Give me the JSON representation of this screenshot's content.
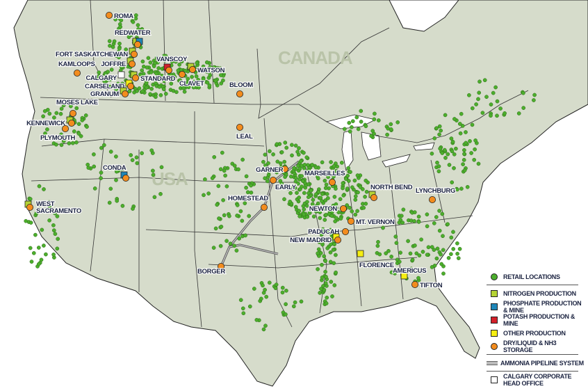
{
  "map": {
    "countries": [
      "CANADA",
      "USA"
    ],
    "colors": {
      "land": "#d6dccb",
      "water": "#ffffff",
      "retail": "#4cae2c",
      "nitrogen": "#b5d334",
      "phosphate": "#1e86b8",
      "potash": "#d3202a",
      "other": "#f5ee12",
      "storage": "#f28c1e",
      "head_office": "#ffffff",
      "pipeline": "#9a9a9a"
    },
    "facilities": [
      {
        "name": "ROMA",
        "types": [
          "storage"
        ]
      },
      {
        "name": "REDWATER",
        "types": [
          "nitrogen",
          "phosphate",
          "storage"
        ]
      },
      {
        "name": "FORT SASKATCHEWAN",
        "types": [
          "nitrogen",
          "storage"
        ]
      },
      {
        "name": "JOFFRE",
        "types": [
          "nitrogen",
          "storage"
        ]
      },
      {
        "name": "KAMLOOPS",
        "types": [
          "storage"
        ]
      },
      {
        "name": "CALGARY",
        "types": [
          "head_office"
        ]
      },
      {
        "name": "STANDARD",
        "types": [
          "nitrogen",
          "storage"
        ]
      },
      {
        "name": "CARSELAND",
        "types": [
          "other",
          "storage"
        ]
      },
      {
        "name": "GRANUM",
        "types": [
          "nitrogen",
          "storage"
        ]
      },
      {
        "name": "VANSCOY",
        "types": [
          "potash",
          "storage"
        ]
      },
      {
        "name": "CLAVET",
        "types": [
          "storage"
        ]
      },
      {
        "name": "WATSON",
        "types": [
          "nitrogen",
          "storage"
        ]
      },
      {
        "name": "BLOOM",
        "types": [
          "storage"
        ]
      },
      {
        "name": "MOSES LAKE",
        "types": [
          "storage"
        ]
      },
      {
        "name": "KENNEWICK",
        "types": [
          "nitrogen",
          "storage"
        ]
      },
      {
        "name": "PLYMOUTH",
        "types": [
          "storage"
        ]
      },
      {
        "name": "CONDA",
        "types": [
          "phosphate",
          "storage"
        ]
      },
      {
        "name": "WEST SACRAMENTO",
        "types": [
          "nitrogen",
          "storage"
        ]
      },
      {
        "name": "LEAL",
        "types": [
          "storage"
        ]
      },
      {
        "name": "GARNER",
        "types": [
          "storage"
        ]
      },
      {
        "name": "EARLY",
        "types": [
          "storage"
        ]
      },
      {
        "name": "HOMESTEAD",
        "types": [
          "storage"
        ]
      },
      {
        "name": "MARSEILLES",
        "types": [
          "storage"
        ]
      },
      {
        "name": "NORTH BEND",
        "types": [
          "nitrogen",
          "storage"
        ]
      },
      {
        "name": "LYNCHBURG",
        "types": [
          "storage"
        ]
      },
      {
        "name": "NEWTON",
        "types": [
          "storage"
        ]
      },
      {
        "name": "MT. VERNON",
        "types": [
          "storage"
        ]
      },
      {
        "name": "PADUCAH",
        "types": [
          "storage"
        ]
      },
      {
        "name": "NEW MADRID",
        "types": [
          "other",
          "storage"
        ]
      },
      {
        "name": "FLORENCE",
        "types": [
          "other"
        ]
      },
      {
        "name": "AMERICUS",
        "types": [
          "other"
        ]
      },
      {
        "name": "TIFTON",
        "types": [
          "storage"
        ]
      },
      {
        "name": "BORGER",
        "types": [
          "storage"
        ]
      }
    ]
  },
  "legend": {
    "retail": "RETAIL LOCATIONS",
    "nitrogen": "NITROGEN PRODUCTION",
    "phosphate": "PHOSPHATE PRODUCTION & MINE",
    "potash": "POTASH PRODUCTION & MINE",
    "other": "OTHER PRODUCTION",
    "storage": "DRY/LIQUID & NH3 STORAGE",
    "pipeline": "AMMONIA PIPELINE SYSTEM",
    "head_office": "CALGARY CORPORATE HEAD OFFICE"
  }
}
